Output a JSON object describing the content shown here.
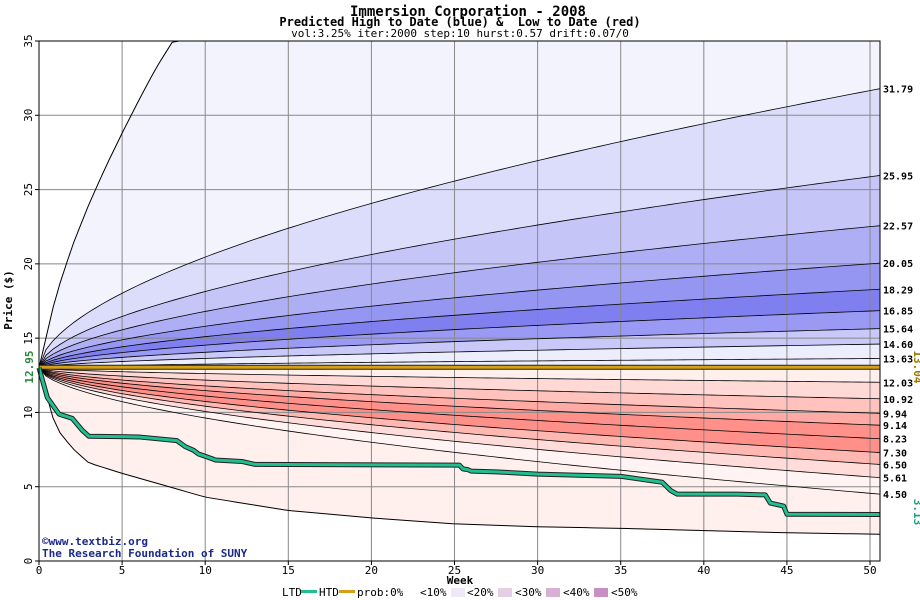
{
  "chart_data": {
    "type": "area",
    "title": "Immersion Corporation - 2008",
    "subtitle": "Predicted High to Date (blue) &  Low to Date (red)",
    "params": "vol:3.25% iter:2000 step:10 hurst:0.57 drift:0.07/0",
    "xlabel": "Week",
    "ylabel": "Price ($)",
    "xlim": [
      0,
      50.6
    ],
    "ylim": [
      0,
      35
    ],
    "xticks": [
      0,
      5,
      10,
      15,
      20,
      25,
      30,
      35,
      40,
      45,
      50
    ],
    "yticks": [
      0,
      5,
      10,
      15,
      20,
      25,
      30,
      35
    ],
    "start_price": 13.0,
    "left_label": "12.95",
    "right_label_htd": "13.04",
    "right_label_ltd": "3.13",
    "curve_end_values": [
      {
        "label": "31.79",
        "value": 31.79,
        "band": "high"
      },
      {
        "label": "25.95",
        "value": 25.95,
        "band": "high"
      },
      {
        "label": "22.57",
        "value": 22.57,
        "band": "high"
      },
      {
        "label": "20.05",
        "value": 20.05,
        "band": "high"
      },
      {
        "label": "18.29",
        "value": 18.29,
        "band": "high"
      },
      {
        "label": "16.85",
        "value": 16.85,
        "band": "high"
      },
      {
        "label": "15.64",
        "value": 15.64,
        "band": "high"
      },
      {
        "label": "14.60",
        "value": 14.6,
        "band": "high"
      },
      {
        "label": "13.63",
        "value": 13.63,
        "band": "high"
      },
      {
        "label": "12.03",
        "value": 12.03,
        "band": "low"
      },
      {
        "label": "10.92",
        "value": 10.92,
        "band": "low"
      },
      {
        "label": "9.94",
        "value": 9.94,
        "band": "low"
      },
      {
        "label": "9.14",
        "value": 9.14,
        "band": "low"
      },
      {
        "label": "8.23",
        "value": 8.23,
        "band": "low"
      },
      {
        "label": "7.30",
        "value": 7.3,
        "band": "low"
      },
      {
        "label": "6.50",
        "value": 6.5,
        "band": "low"
      },
      {
        "label": "5.61",
        "value": 5.61,
        "band": "low"
      },
      {
        "label": "4.50",
        "value": 4.5,
        "band": "low"
      }
    ],
    "outer_upper_curve": {
      "x": [
        0,
        1,
        2,
        3,
        4,
        5,
        6,
        7,
        8,
        8.1
      ],
      "y": [
        13.0,
        17.8,
        21.2,
        24.0,
        26.5,
        28.8,
        31.0,
        33.1,
        34.9,
        35.0
      ]
    },
    "outer_lower_curve": {
      "x": [
        0,
        1,
        2,
        3,
        5,
        10,
        15,
        20,
        25,
        30,
        35,
        40,
        45,
        50.6
      ],
      "y": [
        13.0,
        9.0,
        7.6,
        6.6,
        5.9,
        4.3,
        3.4,
        2.9,
        2.5,
        2.3,
        2.2,
        2.05,
        1.9,
        1.8
      ]
    },
    "series": [
      {
        "name": "HTD",
        "color": "#d4a017",
        "x": [
          0,
          50.6
        ],
        "y": [
          13.04,
          13.04
        ]
      },
      {
        "name": "LTD",
        "color": "#1fbf8f",
        "x": [
          0,
          0.5,
          1.2,
          1.3,
          2.0,
          2.6,
          3.0,
          6.0,
          8.3,
          8.8,
          9.3,
          9.6,
          10.0,
          10.5,
          10.6,
          12.2,
          12.8,
          13.0,
          25.3,
          25.5,
          25.8,
          26.0,
          27.5,
          30.0,
          35.0,
          37.5,
          38.0,
          38.4,
          42.0,
          43.7,
          44.0,
          44.8,
          45.0,
          50.6
        ],
        "y": [
          13.0,
          11.0,
          9.9,
          9.85,
          9.6,
          8.8,
          8.4,
          8.35,
          8.1,
          7.7,
          7.45,
          7.2,
          7.05,
          6.85,
          6.8,
          6.7,
          6.55,
          6.5,
          6.45,
          6.2,
          6.15,
          6.05,
          6.0,
          5.85,
          5.7,
          5.3,
          4.75,
          4.5,
          4.5,
          4.45,
          3.9,
          3.7,
          3.15,
          3.13
        ]
      }
    ],
    "legend": {
      "placement": "bottom",
      "items": [
        "LTD",
        "HTD",
        "prob:0%",
        "<10%",
        "<20%",
        "<30%",
        "<40%",
        "<50%"
      ]
    },
    "band_colors": {
      "high": [
        "#f3f3fe",
        "#dcdcfb",
        "#c5c5f8",
        "#aeaef5",
        "#9595f2",
        "#7f7fef",
        "#9a9af4",
        "#c8c8f9",
        "#ecedfd"
      ],
      "low": [
        "#fff0ee",
        "#ffd9d6",
        "#ffc2bd",
        "#ffaaa4",
        "#ff908a",
        "#ff8f89",
        "#ffb7b2",
        "#ffdcd9",
        "#fff4f3"
      ]
    },
    "grid": true,
    "watermark": [
      "©www.textbiz.org",
      "The Research Foundation of SUNY"
    ]
  }
}
